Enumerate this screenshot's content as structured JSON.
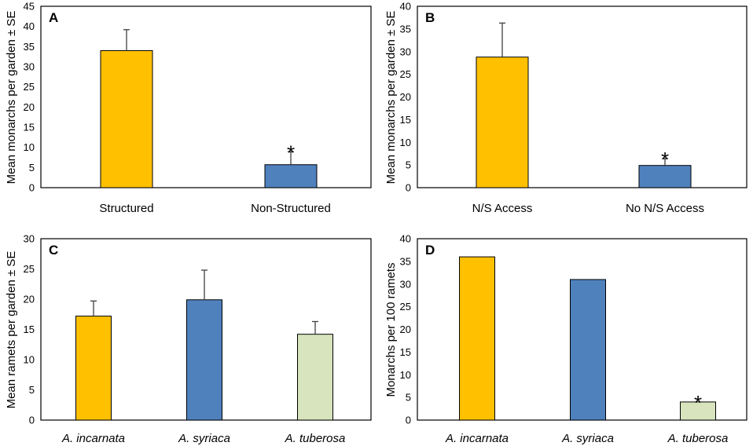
{
  "colors": {
    "orange": "#FFC000",
    "blue": "#4F81BD",
    "pale_green": "#D7E4BD",
    "bar_stroke": "#000000",
    "error_bar": "#404040"
  },
  "chart_data": [
    {
      "panel": "A",
      "type": "bar",
      "ylabel": "Mean monarchs per garden ± SE",
      "ylim": [
        0,
        45
      ],
      "yticks": [
        "0",
        "5",
        "10",
        "15",
        "20",
        "25",
        "30",
        "35",
        "40",
        "45"
      ],
      "categories": [
        "Structured",
        "Non-Structured"
      ],
      "values": [
        34,
        5.7
      ],
      "errors": [
        5.2,
        3.2
      ],
      "bar_colors": [
        "#FFC000",
        "#4F81BD"
      ],
      "significance": [
        "",
        "*"
      ],
      "italic_categories": false
    },
    {
      "panel": "B",
      "type": "bar",
      "ylabel": "Mean monarchs per garden ± SE",
      "ylim": [
        0,
        40
      ],
      "yticks": [
        "0",
        "5",
        "10",
        "15",
        "20",
        "25",
        "30",
        "35",
        "40"
      ],
      "categories": [
        "N/S Access",
        "No N/S Access"
      ],
      "values": [
        28.8,
        4.9
      ],
      "errors": [
        7.5,
        1.5
      ],
      "bar_colors": [
        "#FFC000",
        "#4F81BD"
      ],
      "significance": [
        "",
        "*"
      ],
      "italic_categories": false
    },
    {
      "panel": "C",
      "type": "bar",
      "ylabel": "Mean ramets per garden ± SE",
      "ylim": [
        0,
        30
      ],
      "yticks": [
        "0",
        "5",
        "10",
        "15",
        "20",
        "25",
        "30"
      ],
      "categories": [
        "A. incarnata",
        "A. syriaca",
        "A. tuberosa"
      ],
      "values": [
        17.2,
        19.9,
        14.2
      ],
      "errors": [
        2.5,
        4.9,
        2.1
      ],
      "bar_colors": [
        "#FFC000",
        "#4F81BD",
        "#D7E4BD"
      ],
      "significance": [
        "",
        "",
        ""
      ],
      "italic_categories": true
    },
    {
      "panel": "D",
      "type": "bar",
      "ylabel": "Monarchs per 100 ramets",
      "ylim": [
        0,
        40
      ],
      "yticks": [
        "0",
        "5",
        "10",
        "15",
        "20",
        "25",
        "30",
        "35",
        "40"
      ],
      "categories": [
        "A. incarnata",
        "A. syriaca",
        "A. tuberosa"
      ],
      "values": [
        36,
        31,
        4
      ],
      "errors": [
        0,
        0,
        0
      ],
      "bar_colors": [
        "#FFC000",
        "#4F81BD",
        "#D7E4BD"
      ],
      "significance": [
        "",
        "",
        "*"
      ],
      "italic_categories": true
    }
  ]
}
